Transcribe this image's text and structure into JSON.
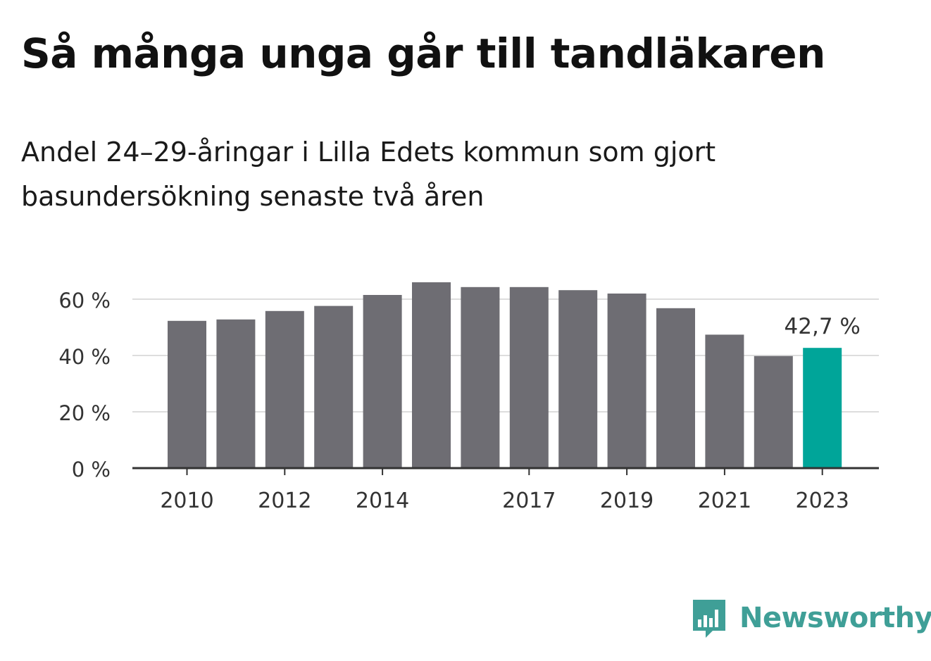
{
  "header": {
    "title": "Så många unga går till tandläkaren",
    "subtitle": "Andel 24–29-åringar i Lilla Edets kommun som gjort basundersökning senaste två åren"
  },
  "chart_data": {
    "type": "bar",
    "title": "Så många unga går till tandläkaren",
    "subtitle": "Andel 24–29-åringar i Lilla Edets kommun som gjort basundersökning senaste två åren",
    "categories": [
      "2010",
      "2011",
      "2012",
      "2013",
      "2014",
      "2015",
      "2016",
      "2017",
      "2018",
      "2019",
      "2020",
      "2021",
      "2022",
      "2023"
    ],
    "values": [
      52.3,
      52.8,
      55.8,
      57.6,
      61.5,
      66.0,
      64.3,
      64.3,
      63.2,
      62.0,
      56.8,
      47.4,
      39.8,
      42.7
    ],
    "x_tick_labels": [
      "2010",
      "2012",
      "2014",
      "2017",
      "2019",
      "2021",
      "2023"
    ],
    "y_ticks": [
      0,
      20,
      40,
      60
    ],
    "y_tick_labels": [
      "0 %",
      "20 %",
      "40 %",
      "60 %"
    ],
    "ylim": [
      0,
      66
    ],
    "xlabel": "",
    "ylabel": "",
    "grid": true,
    "highlight_category": "2023",
    "highlight_label": "42,7 %",
    "colors": {
      "bar": "#6e6d73",
      "highlight": "#00a599",
      "grid": "#dddddd",
      "axis": "#333333"
    }
  },
  "brand": {
    "name": "Newsworthy",
    "logo_icon": "bar-chart-speech-bubble-icon",
    "color": "#3f9f97"
  }
}
